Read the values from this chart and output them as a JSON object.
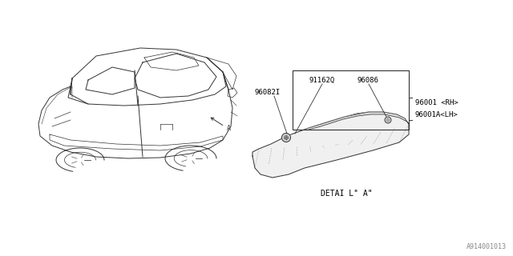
{
  "bg_color": "#ffffff",
  "line_color": "#333333",
  "car_line_color": "#333333",
  "title_ref": "A914001013",
  "detail_label": "DETAI L\" A\"",
  "label_91162Q": "91162Q",
  "label_96086": "96086",
  "label_96082I": "96082I",
  "label_96001_RH": "96001 <RH>",
  "label_96001A_LH": "96001A<LH>",
  "label_A": "A",
  "font_size_labels": 6.5,
  "font_size_detail": 7,
  "font_size_ref": 6
}
